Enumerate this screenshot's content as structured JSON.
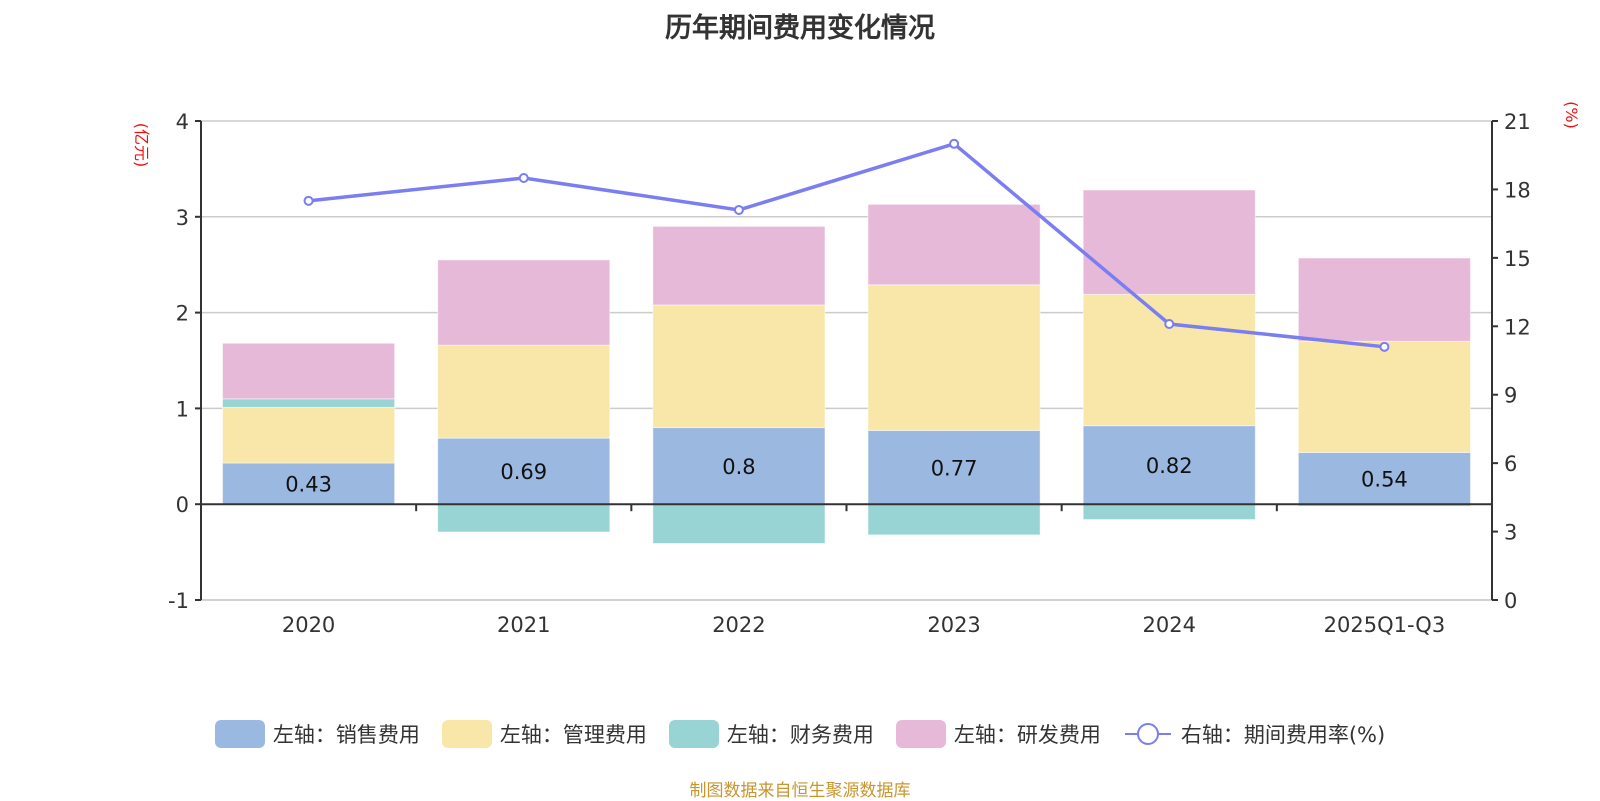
{
  "title": "历年期间费用变化情况",
  "footer": "制图数据来自恒生聚源数据库",
  "chart_data": {
    "type": "bar",
    "title": "历年期间费用变化情况",
    "categories": [
      "2020",
      "2021",
      "2022",
      "2023",
      "2024",
      "2025Q1-Q3"
    ],
    "y_left": {
      "label": "(亿元)",
      "range": [
        -1,
        4
      ],
      "ticks": [
        "-1",
        "0",
        "1",
        "2",
        "3",
        "4"
      ]
    },
    "y_right": {
      "label": "(%)",
      "range": [
        0,
        21
      ],
      "ticks": [
        "0",
        "3",
        "6",
        "9",
        "12",
        "15",
        "18",
        "21"
      ]
    },
    "grid": true,
    "legend_position": "bottom",
    "series": [
      {
        "name": "左轴：销售费用",
        "type": "bar",
        "stack": true,
        "axis": "left",
        "color": "#9bb8e1",
        "values": [
          0.43,
          0.69,
          0.8,
          0.77,
          0.82,
          0.54
        ],
        "show_labels": true
      },
      {
        "name": "左轴：管理费用",
        "type": "bar",
        "stack": true,
        "axis": "left",
        "color": "#f8e7a9",
        "values": [
          0.58,
          0.97,
          1.28,
          1.52,
          1.37,
          1.16
        ]
      },
      {
        "name": "左轴：财务费用",
        "type": "bar",
        "stack": true,
        "axis": "left",
        "color": "#97d4d3",
        "values": [
          0.09,
          -0.29,
          -0.41,
          -0.32,
          -0.16,
          -0.02
        ]
      },
      {
        "name": "左轴：研发费用",
        "type": "bar",
        "stack": true,
        "axis": "left",
        "color": "#e7b9d8",
        "values": [
          0.58,
          0.89,
          0.82,
          0.84,
          1.09,
          0.87
        ]
      },
      {
        "name": "右轴：期间费用率(%)",
        "type": "line",
        "axis": "right",
        "color": "#7a7ef0",
        "values": [
          17.5,
          18.5,
          17.1,
          20.0,
          12.1,
          11.1
        ]
      }
    ]
  }
}
